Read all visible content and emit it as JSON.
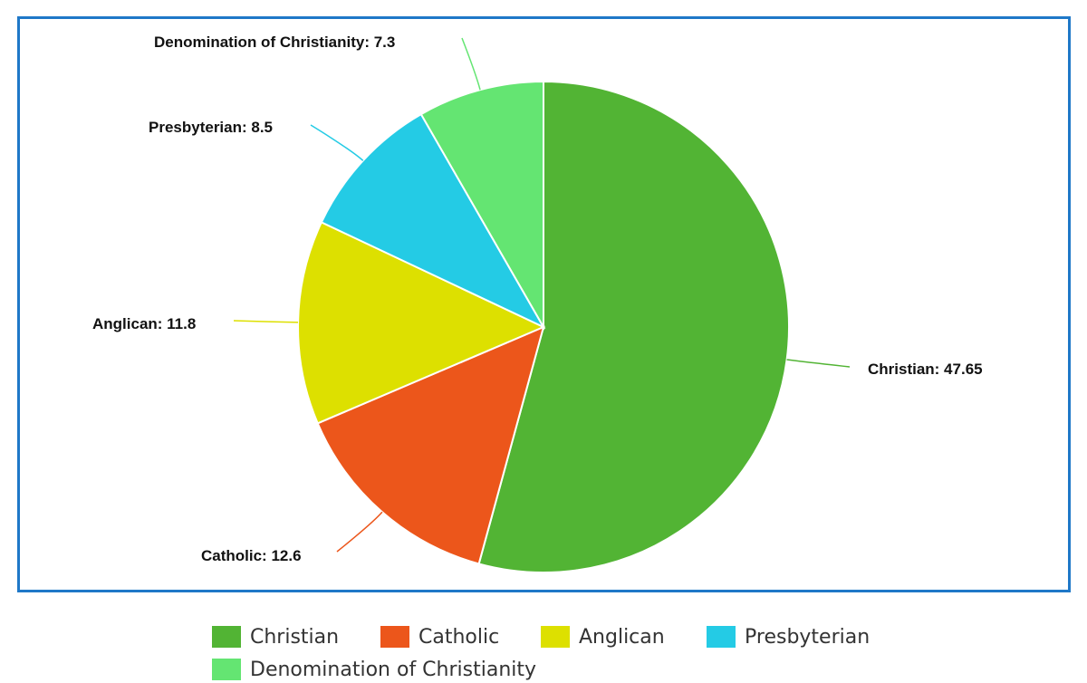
{
  "chart_data": {
    "type": "pie",
    "title": "",
    "categories": [
      "Christian",
      "Catholic",
      "Anglican",
      "Presbyterian",
      "Denomination of Christianity"
    ],
    "values": [
      47.65,
      12.6,
      11.8,
      8.5,
      7.3
    ],
    "colors": [
      "#52b434",
      "#ec561b",
      "#dde000",
      "#24cbe5",
      "#64e572"
    ],
    "data_labels": [
      "Christian: 47.65",
      "Catholic: 12.6",
      "Anglican: 11.8",
      "Presbyterian: 8.5",
      "Denomination of Christianity: 7.3"
    ],
    "legend": {
      "placement": "bottom",
      "entries": [
        "Christian",
        "Catholic",
        "Anglican",
        "Presbyterian",
        "Denomination of Christianity"
      ]
    },
    "start_angle_deg": 0,
    "direction": "clockwise"
  },
  "frame": {
    "border_color": "#1f78c8"
  }
}
